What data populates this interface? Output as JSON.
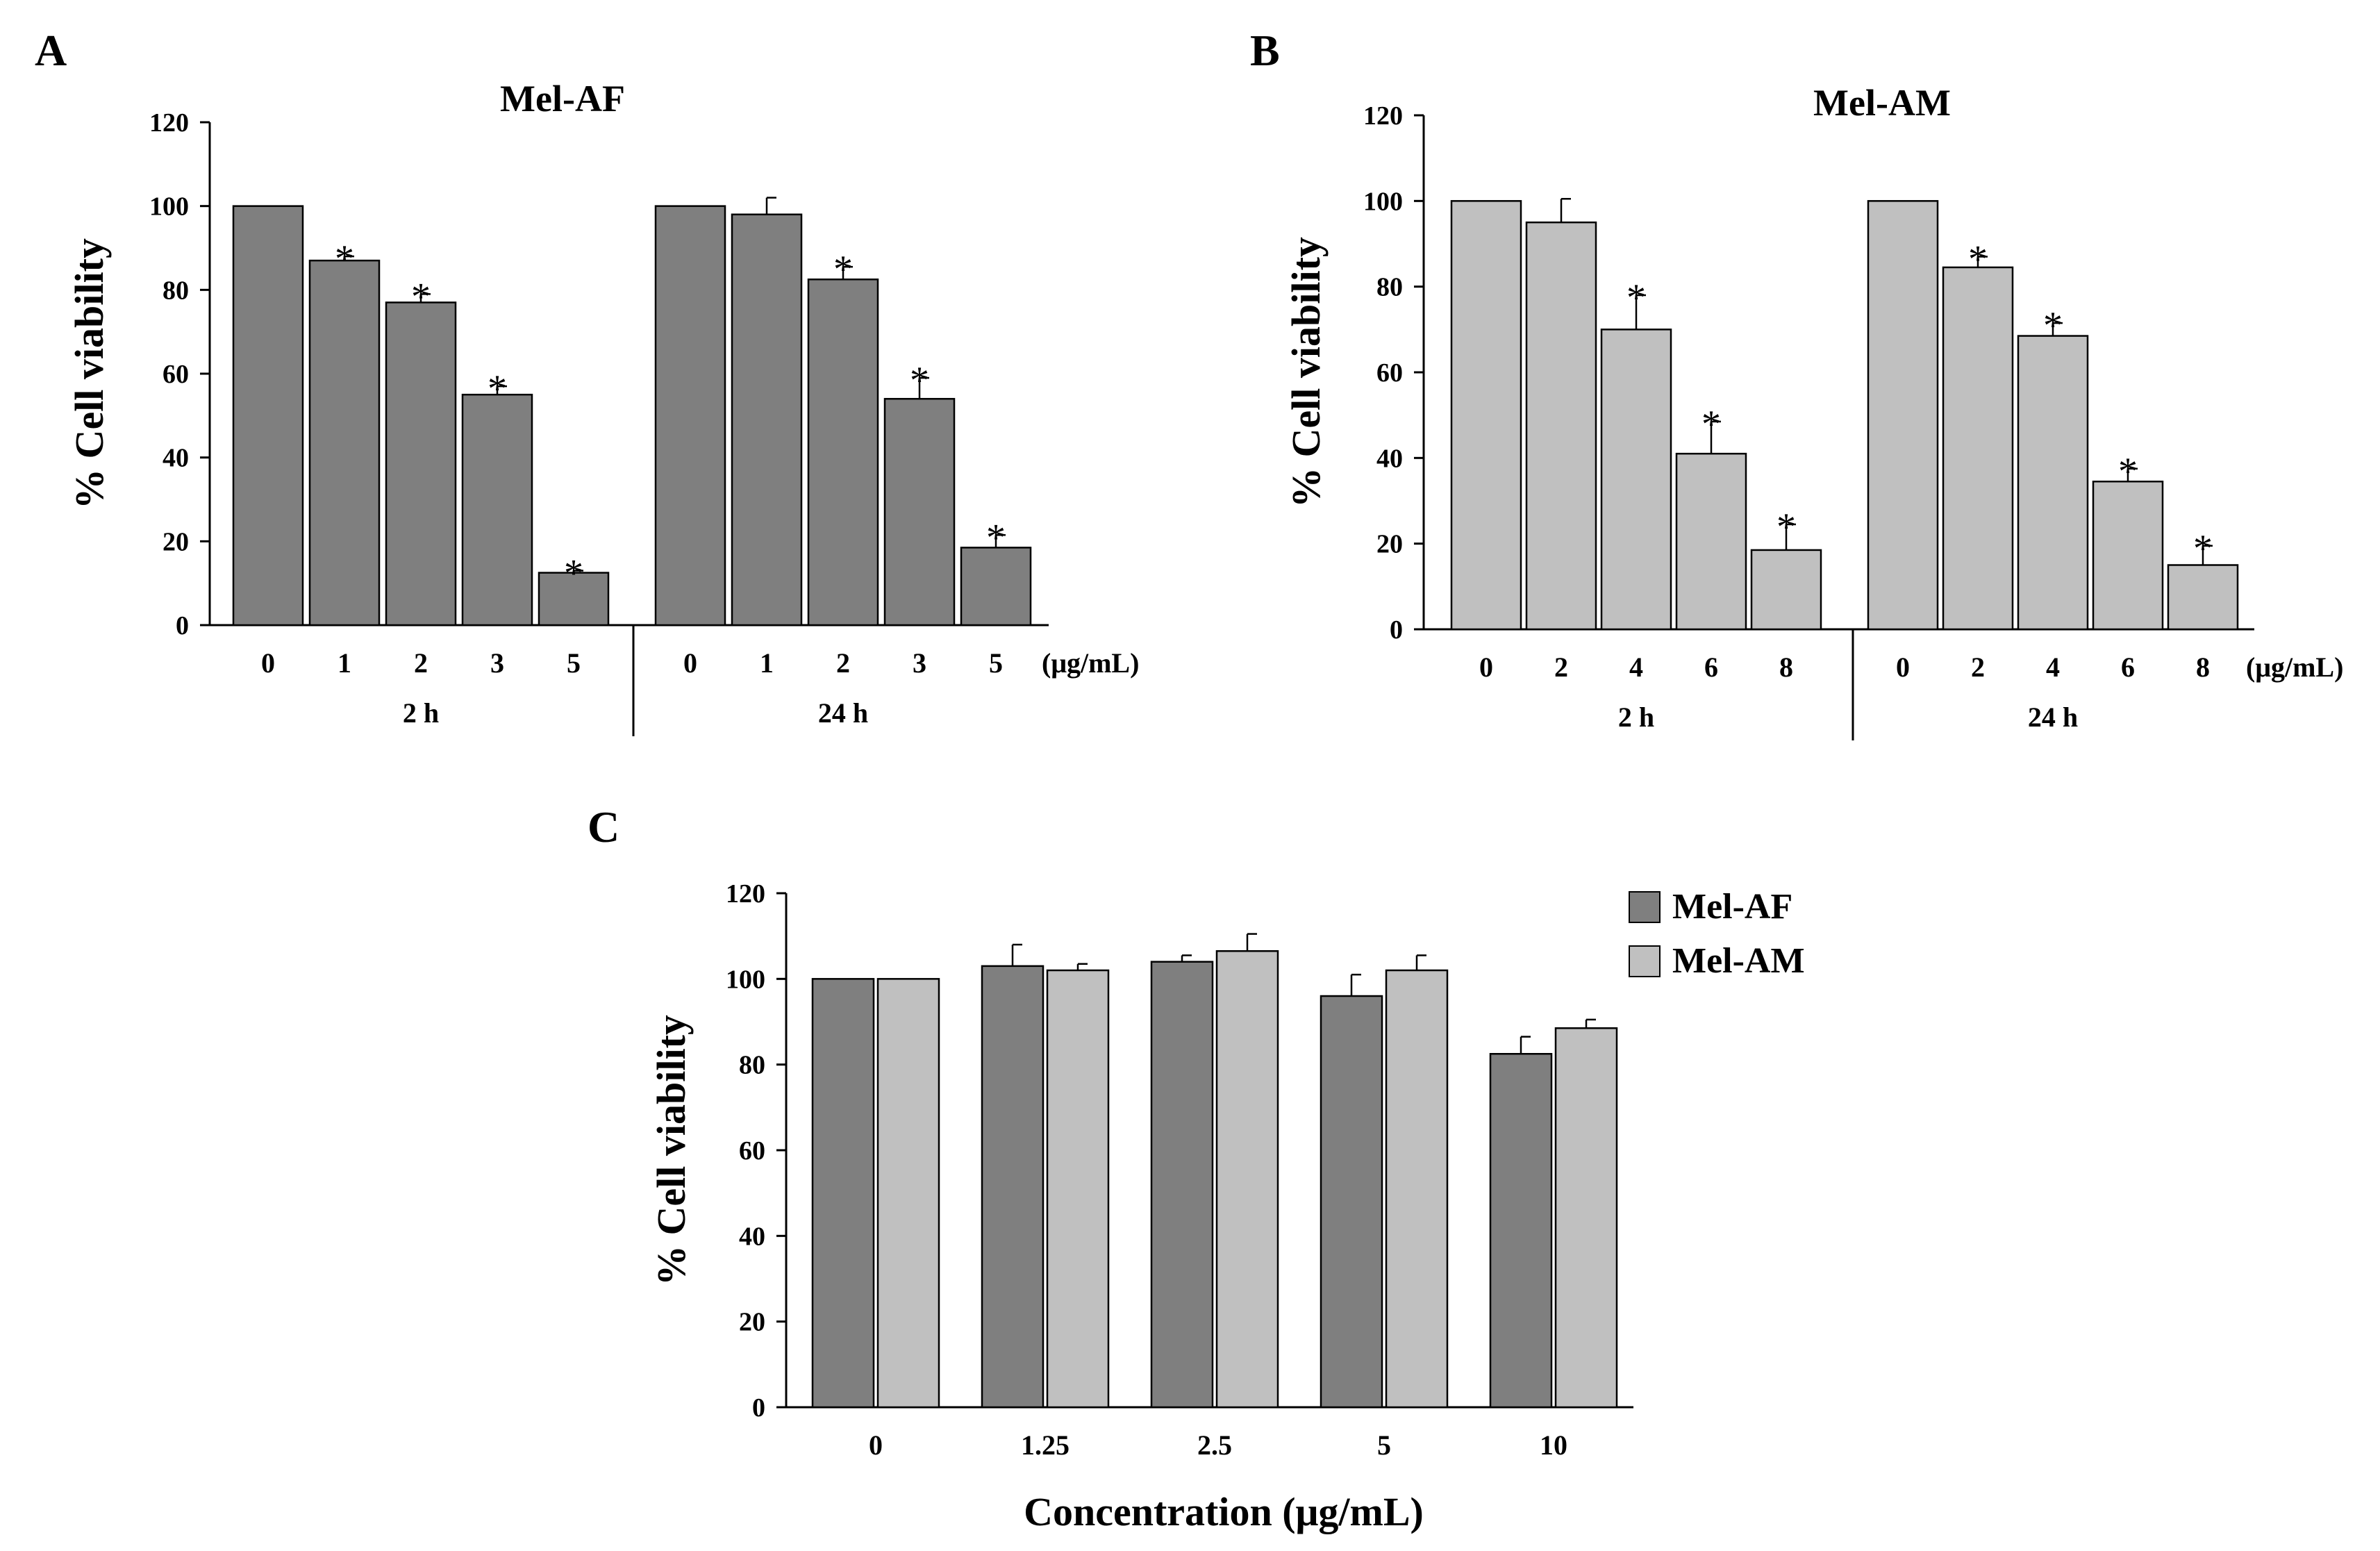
{
  "chart_data": [
    {
      "panel": "A",
      "type": "bar",
      "title": "Mel-AF",
      "ylabel": "% Cell viability",
      "xlabel": "",
      "ylim": [
        0,
        120
      ],
      "yticks": [
        0,
        20,
        40,
        60,
        80,
        100,
        120
      ],
      "unit": "(μg/mL)",
      "color": "#7f7f7f",
      "groups": [
        {
          "label": "2 h",
          "bars": [
            {
              "x": "0",
              "value": 100,
              "err": 0,
              "sig": false
            },
            {
              "x": "1",
              "value": 87,
              "err": 1,
              "sig": true
            },
            {
              "x": "2",
              "value": 77,
              "err": 2,
              "sig": true
            },
            {
              "x": "3",
              "value": 55,
              "err": 2,
              "sig": true
            },
            {
              "x": "5",
              "value": 12.5,
              "err": 0.5,
              "sig": true
            }
          ]
        },
        {
          "label": "24 h",
          "bars": [
            {
              "x": "0",
              "value": 100,
              "err": 0,
              "sig": false
            },
            {
              "x": "1",
              "value": 98,
              "err": 4,
              "sig": false
            },
            {
              "x": "2",
              "value": 82.5,
              "err": 3,
              "sig": true
            },
            {
              "x": "3",
              "value": 54,
              "err": 5,
              "sig": true
            },
            {
              "x": "5",
              "value": 18.5,
              "err": 3,
              "sig": true
            }
          ]
        }
      ]
    },
    {
      "panel": "B",
      "type": "bar",
      "title": "Mel-AM",
      "ylabel": "% Cell viability",
      "xlabel": "",
      "ylim": [
        0,
        120
      ],
      "yticks": [
        0,
        20,
        40,
        60,
        80,
        100,
        120
      ],
      "unit": "(μg/mL)",
      "color": "#c0c0c0",
      "groups": [
        {
          "label": "2 h",
          "bars": [
            {
              "x": "0",
              "value": 100,
              "err": 0,
              "sig": false
            },
            {
              "x": "2",
              "value": 95,
              "err": 5.5,
              "sig": false
            },
            {
              "x": "4",
              "value": 70,
              "err": 8,
              "sig": true
            },
            {
              "x": "6",
              "value": 41,
              "err": 7.5,
              "sig": true
            },
            {
              "x": "8",
              "value": 18.5,
              "err": 6,
              "sig": true
            }
          ]
        },
        {
          "label": "24 h",
          "bars": [
            {
              "x": "0",
              "value": 100,
              "err": 0,
              "sig": false
            },
            {
              "x": "2",
              "value": 84.5,
              "err": 2.5,
              "sig": true
            },
            {
              "x": "4",
              "value": 68.5,
              "err": 3,
              "sig": true
            },
            {
              "x": "6",
              "value": 34.5,
              "err": 3,
              "sig": true
            },
            {
              "x": "8",
              "value": 15,
              "err": 4.5,
              "sig": true
            }
          ]
        }
      ]
    },
    {
      "panel": "C",
      "type": "bar",
      "title": "",
      "ylabel": "% Cell viability",
      "xlabel": "Concentration (μg/mL)",
      "ylim": [
        0,
        120
      ],
      "yticks": [
        0,
        20,
        40,
        60,
        80,
        100,
        120
      ],
      "categories": [
        "0",
        "1.25",
        "2.5",
        "5",
        "10"
      ],
      "legend_position": "top-right",
      "series": [
        {
          "name": "Mel-AF",
          "color": "#7f7f7f",
          "values": [
            100,
            103,
            104,
            96,
            82.5
          ],
          "err": [
            0,
            5,
            1.5,
            5,
            4
          ]
        },
        {
          "name": "Mel-AM",
          "color": "#c0c0c0",
          "values": [
            100,
            102,
            106.5,
            102,
            88.5
          ],
          "err": [
            0,
            1.5,
            4,
            3.5,
            2
          ]
        }
      ]
    }
  ]
}
